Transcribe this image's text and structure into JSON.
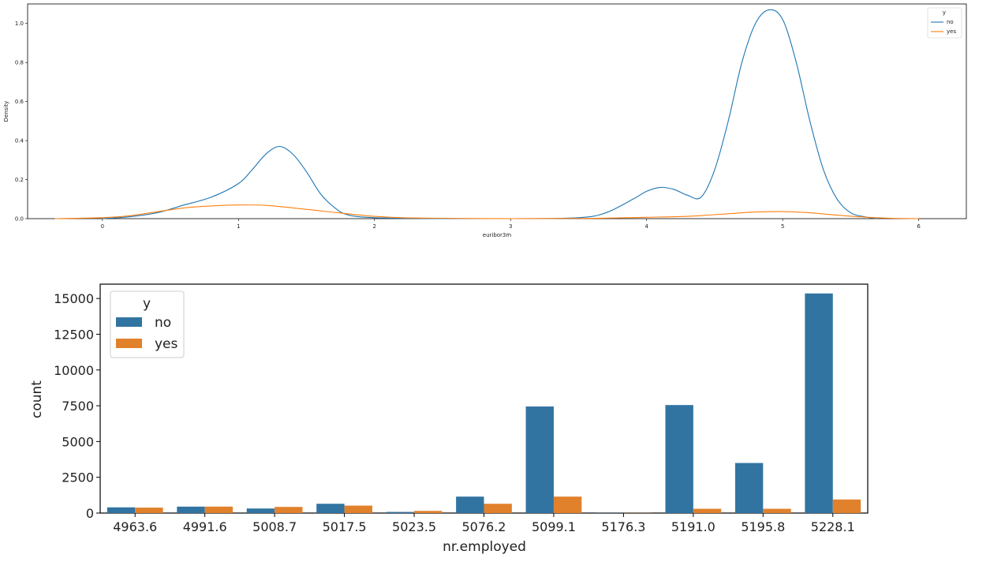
{
  "colors": {
    "no": "#1f77b4",
    "yes": "#ff7f0e",
    "bar_no": "#3274a1",
    "bar_yes": "#e1812c"
  },
  "chart_data": [
    {
      "type": "line",
      "title": "",
      "xlabel": "euribor3m",
      "ylabel": "Density",
      "xlim": [
        -0.55,
        6.35
      ],
      "ylim": [
        0,
        1.1
      ],
      "xticks": [
        "0",
        "1",
        "2",
        "3",
        "4",
        "5",
        "6"
      ],
      "yticks": [
        "0.0",
        "0.2",
        "0.4",
        "0.6",
        "0.8",
        "1.0"
      ],
      "legend": {
        "title": "y",
        "position": "top-right",
        "entries": [
          "no",
          "yes"
        ]
      },
      "series": [
        {
          "name": "no",
          "x": [
            0,
            0.2,
            0.4,
            0.6,
            0.8,
            1.0,
            1.1,
            1.2,
            1.3,
            1.4,
            1.5,
            1.6,
            1.7,
            1.8,
            2.0,
            2.5,
            3.0,
            3.5,
            3.7,
            3.9,
            4.0,
            4.1,
            4.2,
            4.3,
            4.4,
            4.5,
            4.6,
            4.7,
            4.8,
            4.9,
            5.0,
            5.1,
            5.2,
            5.3,
            5.4,
            5.5,
            5.6,
            5.7
          ],
          "y": [
            0.0,
            0.01,
            0.03,
            0.07,
            0.11,
            0.18,
            0.25,
            0.33,
            0.37,
            0.33,
            0.24,
            0.13,
            0.06,
            0.02,
            0.005,
            0.0,
            0.0,
            0.005,
            0.03,
            0.1,
            0.14,
            0.16,
            0.15,
            0.12,
            0.11,
            0.25,
            0.5,
            0.8,
            1.0,
            1.07,
            1.02,
            0.8,
            0.5,
            0.25,
            0.1,
            0.03,
            0.01,
            0.0
          ]
        },
        {
          "name": "yes",
          "x": [
            -0.35,
            0,
            0.2,
            0.4,
            0.6,
            0.8,
            1.0,
            1.2,
            1.4,
            1.6,
            1.8,
            2.0,
            2.2,
            2.5,
            3.0,
            3.5,
            3.8,
            4.0,
            4.3,
            4.6,
            4.8,
            5.0,
            5.2,
            5.4,
            5.6,
            5.8,
            6.0
          ],
          "y": [
            0.0,
            0.005,
            0.015,
            0.035,
            0.055,
            0.065,
            0.07,
            0.068,
            0.055,
            0.04,
            0.025,
            0.012,
            0.005,
            0.002,
            0.0,
            0.001,
            0.004,
            0.007,
            0.012,
            0.025,
            0.034,
            0.036,
            0.03,
            0.018,
            0.008,
            0.002,
            0.0
          ]
        }
      ]
    },
    {
      "type": "bar",
      "title": "",
      "xlabel": "nr.employed",
      "ylabel": "count",
      "ylim": [
        0,
        16000
      ],
      "yticks": [
        "0",
        "2500",
        "5000",
        "7500",
        "10000",
        "12500",
        "15000"
      ],
      "categories": [
        "4963.6",
        "4991.6",
        "5008.7",
        "5017.5",
        "5023.5",
        "5076.2",
        "5099.1",
        "5176.3",
        "5191.0",
        "5195.8",
        "5228.1"
      ],
      "legend": {
        "title": "y",
        "position": "top-left",
        "entries": [
          "no",
          "yes"
        ]
      },
      "series": [
        {
          "name": "no",
          "values": [
            400,
            450,
            320,
            650,
            80,
            1150,
            7450,
            10,
            7550,
            3500,
            15350
          ]
        },
        {
          "name": "yes",
          "values": [
            380,
            450,
            430,
            520,
            150,
            650,
            1150,
            10,
            300,
            300,
            950
          ]
        }
      ]
    }
  ]
}
